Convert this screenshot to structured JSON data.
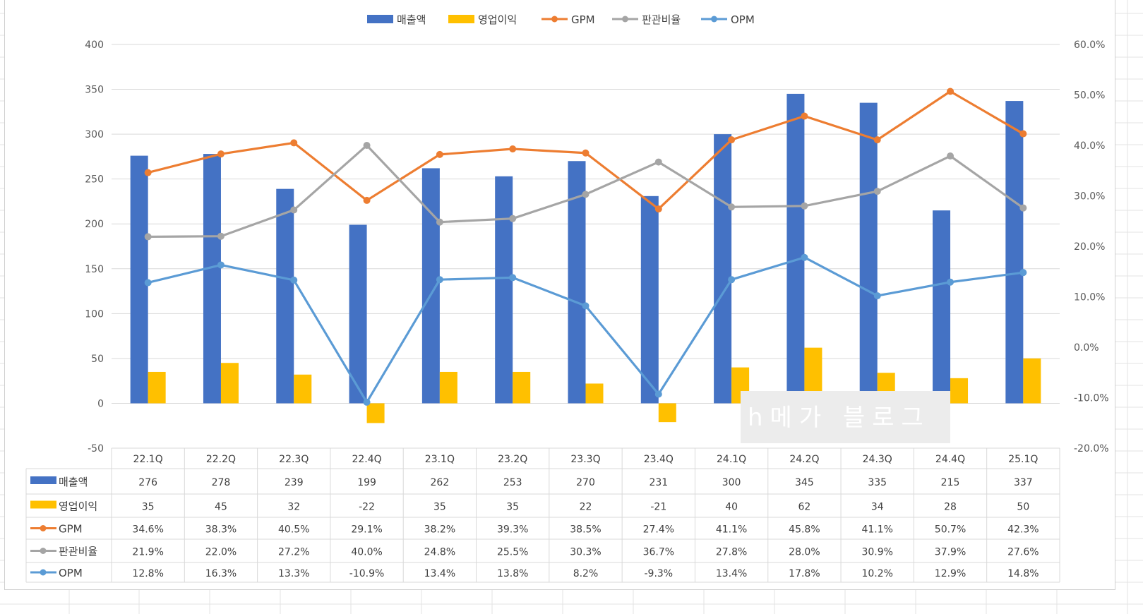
{
  "legend": [
    {
      "label": "매출액",
      "kind": "bar",
      "color": "#4472C4"
    },
    {
      "label": "영업이익",
      "kind": "bar",
      "color": "#FFC000"
    },
    {
      "label": "GPM",
      "kind": "line",
      "color": "#ED7D31"
    },
    {
      "label": "판관비율",
      "kind": "line",
      "color": "#A5A5A5"
    },
    {
      "label": "OPM",
      "kind": "line",
      "color": "#5B9BD5"
    }
  ],
  "watermark": "h메가 블로그",
  "chart_data": {
    "type": "bar",
    "title": "",
    "grid": true,
    "legend_position": "top",
    "categories": [
      "22.1Q",
      "22.2Q",
      "22.3Q",
      "22.4Q",
      "23.1Q",
      "23.2Q",
      "23.3Q",
      "23.4Q",
      "24.1Q",
      "24.2Q",
      "24.3Q",
      "24.4Q",
      "25.1Q"
    ],
    "y_left": {
      "min": -50,
      "max": 400,
      "step": 50,
      "ticks": [
        "400",
        "350",
        "300",
        "250",
        "200",
        "150",
        "100",
        "50",
        "0",
        "-50"
      ]
    },
    "y_right": {
      "min": -20,
      "max": 60,
      "step": 10,
      "ticks": [
        "60.0%",
        "50.0%",
        "40.0%",
        "30.0%",
        "20.0%",
        "10.0%",
        "0.0%",
        "-10.0%",
        "-20.0%"
      ]
    },
    "series": [
      {
        "name": "매출액",
        "type": "bar",
        "axis": "left",
        "color": "#4472C4",
        "values": [
          276,
          278,
          239,
          199,
          262,
          253,
          270,
          231,
          300,
          345,
          335,
          215,
          337
        ],
        "labels": [
          "276",
          "278",
          "239",
          "199",
          "262",
          "253",
          "270",
          "231",
          "300",
          "345",
          "335",
          "215",
          "337"
        ]
      },
      {
        "name": "영업이익",
        "type": "bar",
        "axis": "left",
        "color": "#FFC000",
        "values": [
          35,
          45,
          32,
          -22,
          35,
          35,
          22,
          -21,
          40,
          62,
          34,
          28,
          50
        ],
        "labels": [
          "35",
          "45",
          "32",
          "-22",
          "35",
          "35",
          "22",
          "-21",
          "40",
          "62",
          "34",
          "28",
          "50"
        ]
      },
      {
        "name": "GPM",
        "type": "line",
        "axis": "right",
        "color": "#ED7D31",
        "values": [
          34.6,
          38.3,
          40.5,
          29.1,
          38.2,
          39.3,
          38.5,
          27.4,
          41.1,
          45.8,
          41.1,
          50.7,
          42.3
        ],
        "labels": [
          "34.6%",
          "38.3%",
          "40.5%",
          "29.1%",
          "38.2%",
          "39.3%",
          "38.5%",
          "27.4%",
          "41.1%",
          "45.8%",
          "41.1%",
          "50.7%",
          "42.3%"
        ]
      },
      {
        "name": "판관비율",
        "type": "line",
        "axis": "right",
        "color": "#A5A5A5",
        "values": [
          21.9,
          22.0,
          27.2,
          40.0,
          24.8,
          25.5,
          30.3,
          36.7,
          27.8,
          28.0,
          30.9,
          37.9,
          27.6
        ],
        "labels": [
          "21.9%",
          "22.0%",
          "27.2%",
          "40.0%",
          "24.8%",
          "25.5%",
          "30.3%",
          "36.7%",
          "27.8%",
          "28.0%",
          "30.9%",
          "37.9%",
          "27.6%"
        ]
      },
      {
        "name": "OPM",
        "type": "line",
        "axis": "right",
        "color": "#5B9BD5",
        "values": [
          12.8,
          16.3,
          13.3,
          -10.9,
          13.4,
          13.8,
          8.2,
          -9.3,
          13.4,
          17.8,
          10.2,
          12.9,
          14.8
        ],
        "labels": [
          "12.8%",
          "16.3%",
          "13.3%",
          "-10.9%",
          "13.4%",
          "13.8%",
          "8.2%",
          "-9.3%",
          "13.4%",
          "17.8%",
          "10.2%",
          "12.9%",
          "14.8%"
        ]
      }
    ]
  }
}
